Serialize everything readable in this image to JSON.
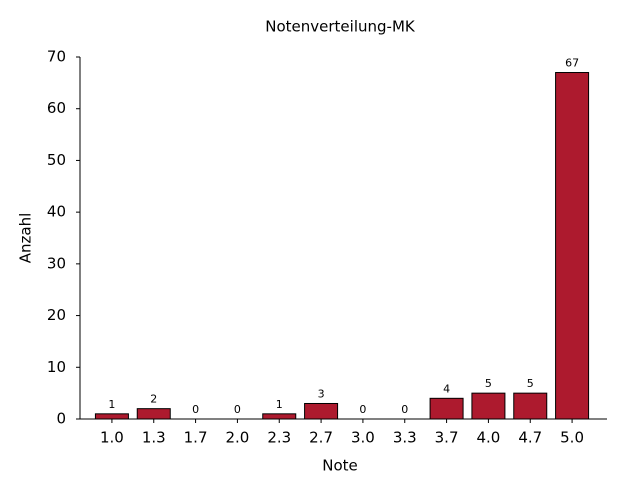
{
  "chart_data": {
    "type": "bar",
    "title": "Notenverteilung-MK",
    "x_label": "Note",
    "y_label": "Anzahl",
    "categories": [
      "1.0",
      "1.3",
      "1.7",
      "2.0",
      "2.3",
      "2.7",
      "3.0",
      "3.3",
      "3.7",
      "4.0",
      "4.7",
      "5.0"
    ],
    "values": [
      1,
      2,
      0,
      0,
      1,
      3,
      0,
      0,
      4,
      5,
      5,
      67
    ],
    "color": "#ad1a2e",
    "ylim": [
      0,
      70
    ],
    "yticks": [
      0,
      10,
      20,
      30,
      40,
      50,
      60,
      70
    ],
    "grid": false
  }
}
